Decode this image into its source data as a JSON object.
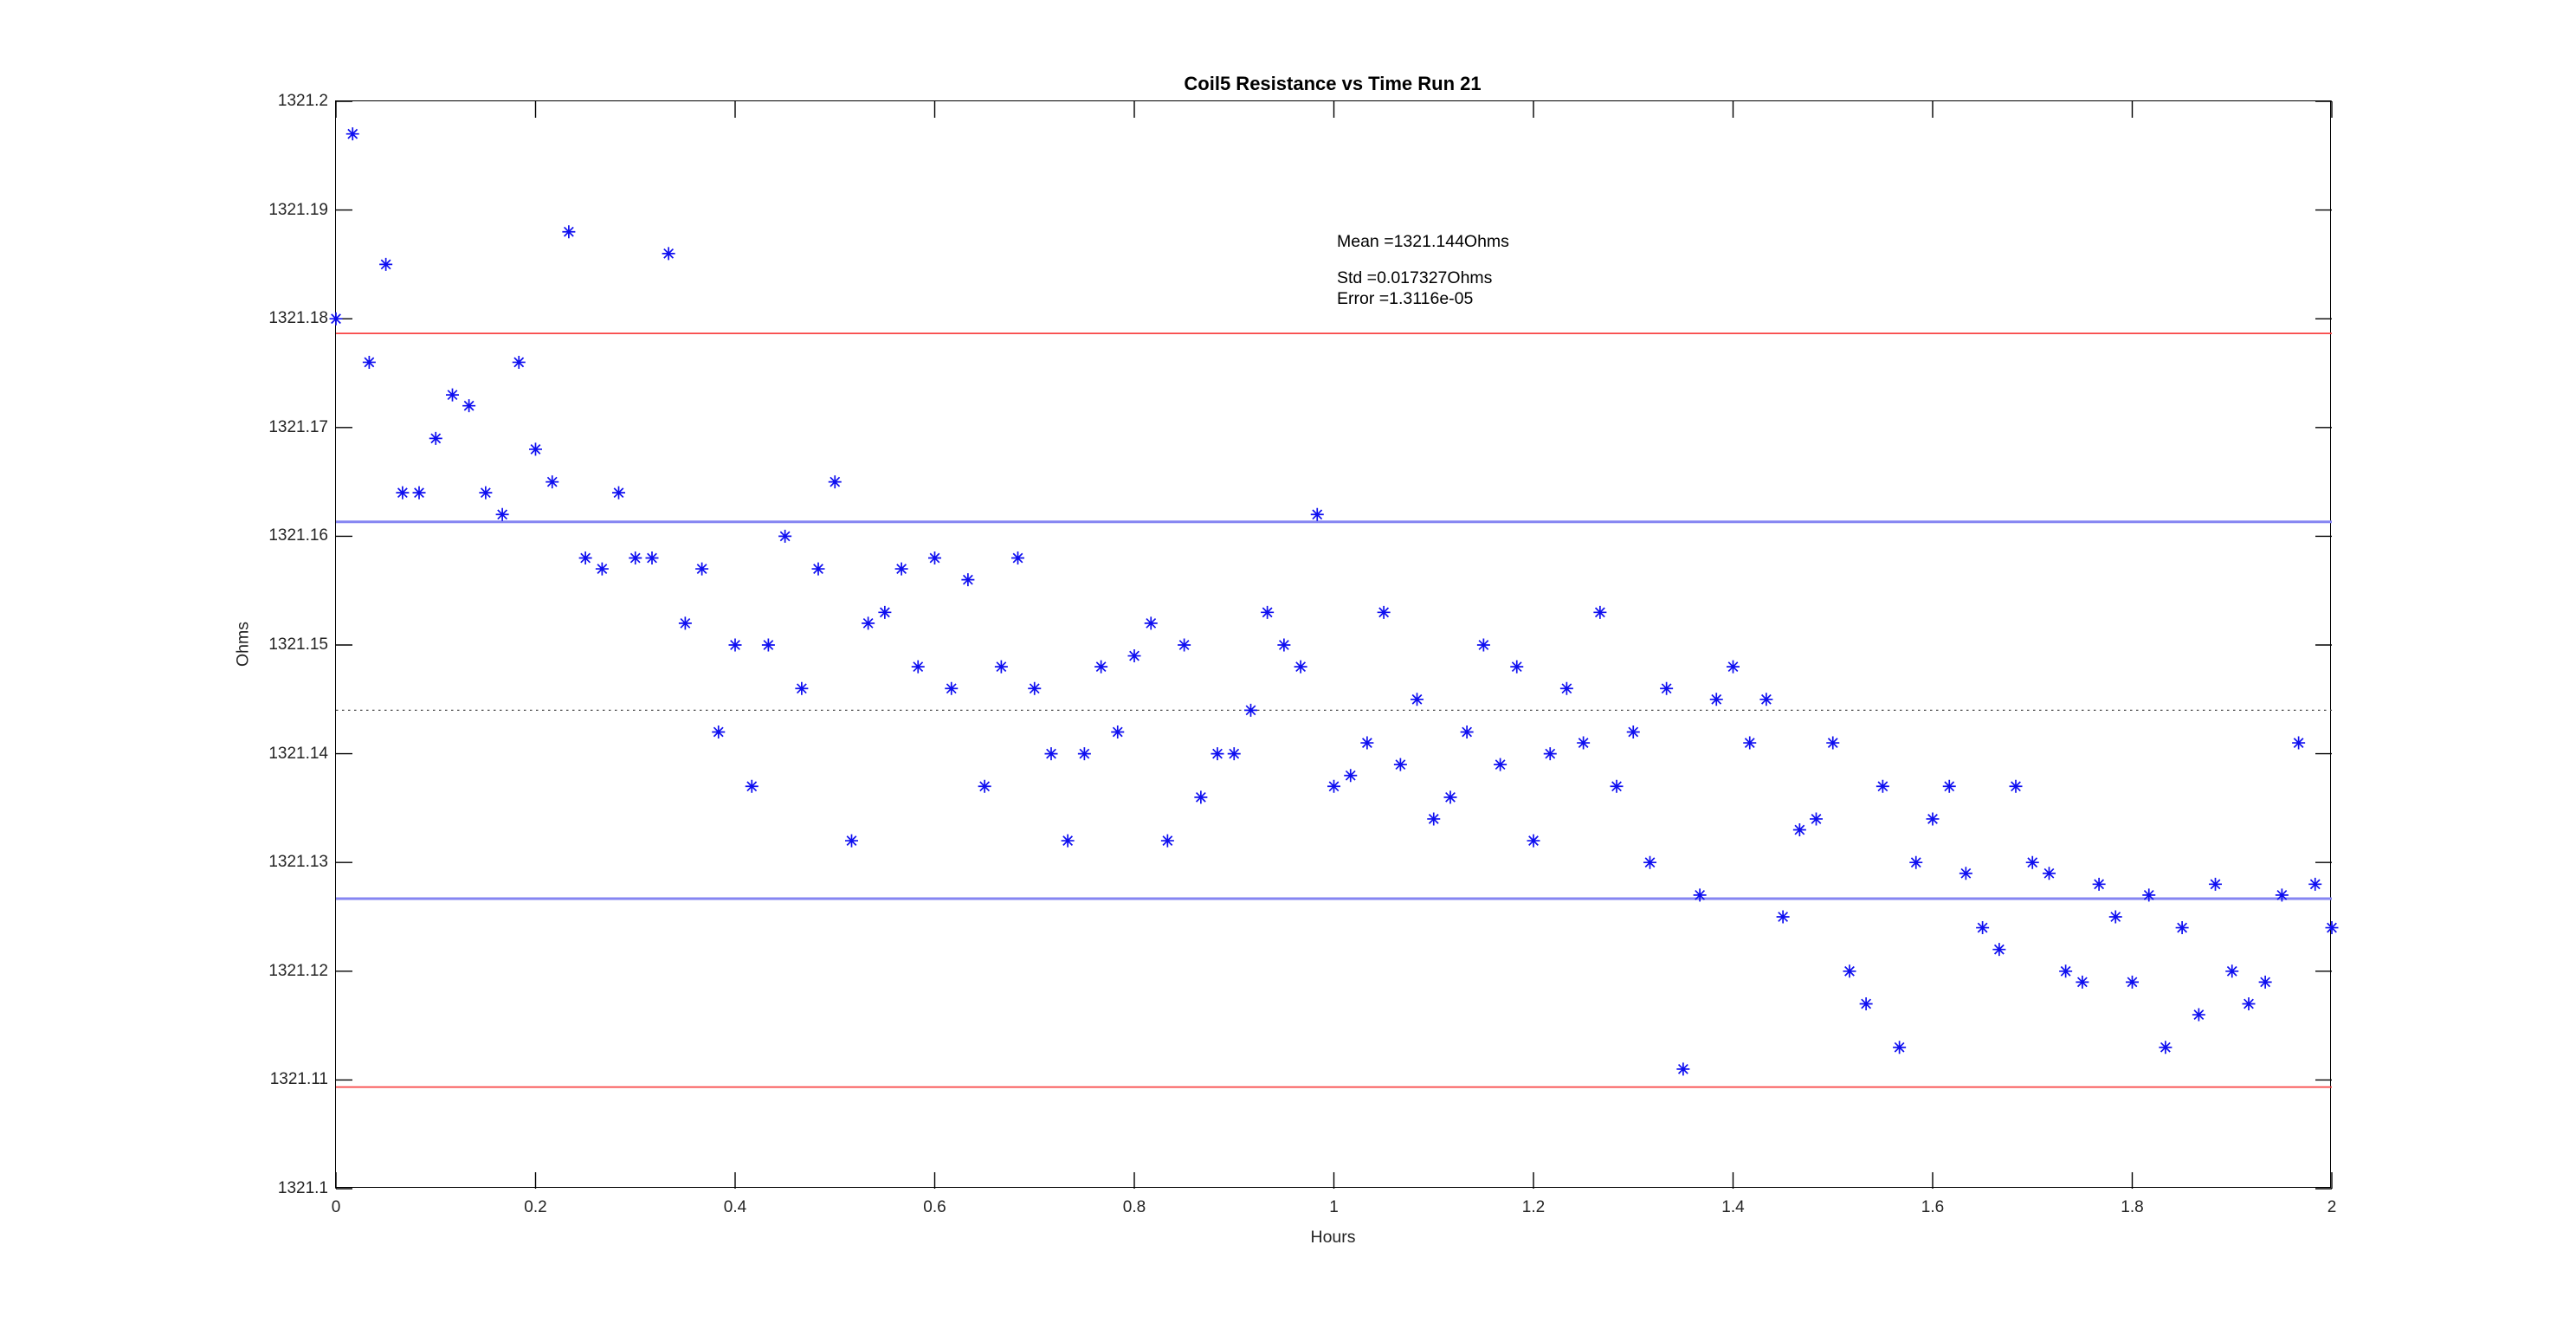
{
  "figure": {
    "title": "Coil5 Resistance vs Time Run 21",
    "xlabel": "Hours",
    "ylabel": "Ohms",
    "annotation": {
      "mean_label": "Mean =1321.144Ohms",
      "std_label": "Std =0.017327Ohms",
      "error_label": "Error =1.3116e-05"
    }
  },
  "chart_data": {
    "type": "scatter",
    "title": "Coil5 Resistance vs Time Run 21",
    "xlabel": "Hours",
    "ylabel": "Ohms",
    "xlim": [
      0,
      2
    ],
    "ylim": [
      1321.1,
      1321.2
    ],
    "grid": false,
    "x_tick_values": [
      0,
      0.2,
      0.4,
      0.6,
      0.8,
      1,
      1.2,
      1.4,
      1.6,
      1.8,
      2
    ],
    "x_tick_labels": [
      "0",
      "0.2",
      "0.4",
      "0.6",
      "0.8",
      "1",
      "1.2",
      "1.4",
      "1.6",
      "1.8",
      "2"
    ],
    "y_tick_values": [
      1321.1,
      1321.11,
      1321.12,
      1321.13,
      1321.14,
      1321.15,
      1321.16,
      1321.17,
      1321.18,
      1321.19,
      1321.2
    ],
    "y_tick_labels": [
      "1321.1",
      "1321.11",
      "1321.12",
      "1321.13",
      "1321.14",
      "1321.15",
      "1321.16",
      "1321.17",
      "1321.18",
      "1321.19",
      "1321.2"
    ],
    "marker": "asterisk",
    "marker_color": "#0f0ff0",
    "stats": {
      "mean": 1321.144,
      "std": 0.017327,
      "error": 1.3116e-05
    },
    "reference_lines": [
      {
        "name": "mean",
        "value": 1321.144,
        "style": "dotted",
        "color": "#4d4d4d",
        "width": 1.3
      },
      {
        "name": "mean+1std",
        "value": 1321.161327,
        "style": "solid",
        "color": "#8585f2",
        "width": 3
      },
      {
        "name": "mean-1std",
        "value": 1321.126673,
        "style": "solid",
        "color": "#8585f2",
        "width": 3
      },
      {
        "name": "mean+2std",
        "value": 1321.178654,
        "style": "solid",
        "color": "#f84545",
        "width": 1.7
      },
      {
        "name": "mean-2std",
        "value": 1321.109346,
        "style": "solid",
        "color": "#f84545",
        "width": 1.7
      }
    ],
    "series": [
      {
        "name": "Coil5 resistance",
        "x": [
          0,
          0.0167,
          0.0333,
          0.05,
          0.0667,
          0.0833,
          0.1,
          0.1167,
          0.1333,
          0.15,
          0.1667,
          0.1833,
          0.2,
          0.2167,
          0.2333,
          0.25,
          0.2667,
          0.2833,
          0.3,
          0.3167,
          0.3333,
          0.35,
          0.3667,
          0.3833,
          0.4,
          0.4167,
          0.4333,
          0.45,
          0.4667,
          0.4833,
          0.5,
          0.5167,
          0.5333,
          0.55,
          0.5667,
          0.5833,
          0.6,
          0.6167,
          0.6333,
          0.65,
          0.6667,
          0.6833,
          0.7,
          0.7167,
          0.7333,
          0.75,
          0.7667,
          0.7833,
          0.8,
          0.8167,
          0.8333,
          0.85,
          0.8667,
          0.8833,
          0.9,
          0.9167,
          0.9333,
          0.95,
          0.9667,
          0.9833,
          1,
          1.0167,
          1.0333,
          1.05,
          1.0667,
          1.0833,
          1.1,
          1.1167,
          1.1333,
          1.15,
          1.1667,
          1.1833,
          1.2,
          1.2167,
          1.2333,
          1.25,
          1.2667,
          1.2833,
          1.3,
          1.3167,
          1.3333,
          1.35,
          1.3667,
          1.3833,
          1.4,
          1.4167,
          1.4333,
          1.45,
          1.4667,
          1.4833,
          1.5,
          1.5167,
          1.5333,
          1.55,
          1.5667,
          1.5833,
          1.6,
          1.6167,
          1.6333,
          1.65,
          1.6667,
          1.6833,
          1.7,
          1.7167,
          1.7333,
          1.75,
          1.7667,
          1.7833,
          1.8,
          1.8167,
          1.8333,
          1.85,
          1.8667,
          1.8833,
          1.9,
          1.9167,
          1.9333,
          1.95,
          1.9667,
          1.9833,
          2
        ],
        "y": [
          1321.18,
          1321.197,
          1321.176,
          1321.185,
          1321.164,
          1321.164,
          1321.169,
          1321.173,
          1321.172,
          1321.164,
          1321.162,
          1321.176,
          1321.168,
          1321.165,
          1321.188,
          1321.158,
          1321.157,
          1321.164,
          1321.158,
          1321.158,
          1321.186,
          1321.152,
          1321.157,
          1321.142,
          1321.15,
          1321.137,
          1321.15,
          1321.16,
          1321.146,
          1321.157,
          1321.165,
          1321.132,
          1321.152,
          1321.153,
          1321.157,
          1321.148,
          1321.158,
          1321.146,
          1321.156,
          1321.137,
          1321.148,
          1321.158,
          1321.146,
          1321.14,
          1321.132,
          1321.14,
          1321.148,
          1321.142,
          1321.149,
          1321.152,
          1321.132,
          1321.15,
          1321.136,
          1321.14,
          1321.14,
          1321.144,
          1321.153,
          1321.15,
          1321.148,
          1321.162,
          1321.137,
          1321.138,
          1321.141,
          1321.153,
          1321.139,
          1321.145,
          1321.134,
          1321.136,
          1321.142,
          1321.15,
          1321.139,
          1321.148,
          1321.132,
          1321.14,
          1321.146,
          1321.141,
          1321.153,
          1321.137,
          1321.142,
          1321.13,
          1321.146,
          1321.111,
          1321.127,
          1321.145,
          1321.148,
          1321.141,
          1321.145,
          1321.125,
          1321.133,
          1321.134,
          1321.141,
          1321.12,
          1321.117,
          1321.137,
          1321.113,
          1321.13,
          1321.134,
          1321.137,
          1321.129,
          1321.124,
          1321.122,
          1321.137,
          1321.13,
          1321.129,
          1321.12,
          1321.119,
          1321.128,
          1321.125,
          1321.119,
          1321.127,
          1321.113,
          1321.124,
          1321.116,
          1321.128,
          1321.12,
          1321.117,
          1321.119,
          1321.127,
          1321.141,
          1321.128,
          1321.124
        ]
      }
    ]
  }
}
